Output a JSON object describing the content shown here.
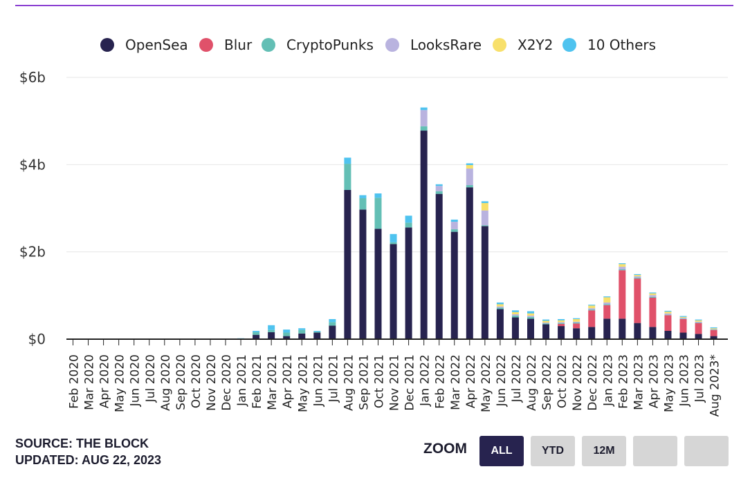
{
  "legend": [
    {
      "label": "OpenSea",
      "color": "#27234f"
    },
    {
      "label": "Blur",
      "color": "#e0516a"
    },
    {
      "label": "CryptoPunks",
      "color": "#63bfb5"
    },
    {
      "label": "LooksRare",
      "color": "#b9b3df"
    },
    {
      "label": "X2Y2",
      "color": "#f8e06b"
    },
    {
      "label": "10 Others",
      "color": "#4fc3ef"
    }
  ],
  "footer": {
    "source": "SOURCE: THE BLOCK",
    "updated": "UPDATED: AUG 22, 2023"
  },
  "zoom": {
    "label": "ZOOM",
    "buttons": [
      "ALL",
      "YTD",
      "12M",
      "",
      ""
    ],
    "active": "ALL"
  },
  "chart_data": {
    "type": "bar",
    "stacked": true,
    "title": "",
    "xlabel": "",
    "ylabel": "",
    "ylim": [
      0,
      6
    ],
    "y_unit": "billion USD",
    "y_ticks": [
      "$0",
      "$2b",
      "$4b",
      "$6b"
    ],
    "y_tick_values": [
      0,
      2,
      4,
      6
    ],
    "legend_position": "top-center",
    "categories": [
      "Feb 2020",
      "Mar 2020",
      "Apr 2020",
      "May 2020",
      "Jun 2020",
      "Jul 2020",
      "Aug 2020",
      "Sep 2020",
      "Oct 2020",
      "Nov 2020",
      "Dec 2020",
      "Jan 2021",
      "Feb 2021",
      "Mar 2021",
      "Apr 2021",
      "May 2021",
      "Jun 2021",
      "Jul 2021",
      "Aug 2021",
      "Sep 2021",
      "Oct 2021",
      "Nov 2021",
      "Dec 2021",
      "Jan 2022",
      "Feb 2022",
      "Mar 2022",
      "Apr 2022",
      "May 2022",
      "Jun 2022",
      "Jul 2022",
      "Aug 2022",
      "Sep 2022",
      "Oct 2022",
      "Nov 2022",
      "Dec 2022",
      "Jan 2023",
      "Feb 2023",
      "Mar 2023",
      "Apr 2023",
      "May 2023",
      "Jun 2023",
      "Jul 2023",
      "Aug 2023*"
    ],
    "series": [
      {
        "name": "OpenSea",
        "color": "#27234f",
        "values": [
          0,
          0,
          0,
          0,
          0,
          0,
          0,
          0,
          0,
          0,
          0,
          0.005,
          0.1,
          0.16,
          0.07,
          0.13,
          0.15,
          0.31,
          3.42,
          2.97,
          2.53,
          2.18,
          2.56,
          4.78,
          3.33,
          2.46,
          3.48,
          2.59,
          0.69,
          0.5,
          0.47,
          0.34,
          0.3,
          0.25,
          0.28,
          0.47,
          0.47,
          0.37,
          0.28,
          0.19,
          0.15,
          0.12,
          0.07
        ]
      },
      {
        "name": "Blur",
        "color": "#e0516a",
        "values": [
          0,
          0,
          0,
          0,
          0,
          0,
          0,
          0,
          0,
          0,
          0,
          0,
          0,
          0,
          0,
          0,
          0,
          0,
          0,
          0,
          0,
          0,
          0,
          0,
          0,
          0,
          0,
          0,
          0,
          0,
          0,
          0,
          0.05,
          0.11,
          0.38,
          0.31,
          1.11,
          1.02,
          0.67,
          0.36,
          0.31,
          0.25,
          0.14
        ]
      },
      {
        "name": "CryptoPunks",
        "color": "#63bfb5",
        "values": [
          0,
          0,
          0,
          0,
          0,
          0,
          0,
          0,
          0,
          0,
          0,
          0.01,
          0.06,
          0.05,
          0.08,
          0.08,
          0.02,
          0.08,
          0.6,
          0.26,
          0.71,
          0.04,
          0.11,
          0.1,
          0.06,
          0.06,
          0.05,
          0.02,
          0.03,
          0.04,
          0.04,
          0.02,
          0.02,
          0.02,
          0.02,
          0.02,
          0.02,
          0.02,
          0.02,
          0.01,
          0.01,
          0.01,
          0.01
        ]
      },
      {
        "name": "LooksRare",
        "color": "#b9b3df",
        "values": [
          0,
          0,
          0,
          0,
          0,
          0,
          0,
          0,
          0,
          0,
          0,
          0,
          0,
          0,
          0,
          0,
          0,
          0,
          0,
          0,
          0,
          0,
          0,
          0.37,
          0.12,
          0.17,
          0.38,
          0.34,
          0.03,
          0.03,
          0.03,
          0.02,
          0.02,
          0.02,
          0.03,
          0.04,
          0.06,
          0.03,
          0.04,
          0.03,
          0.02,
          0.02,
          0.01
        ]
      },
      {
        "name": "X2Y2",
        "color": "#f8e06b",
        "values": [
          0,
          0,
          0,
          0,
          0,
          0,
          0,
          0,
          0,
          0,
          0,
          0,
          0,
          0,
          0,
          0,
          0,
          0,
          0,
          0,
          0,
          0,
          0,
          0,
          0,
          0,
          0.08,
          0.17,
          0.05,
          0.05,
          0.05,
          0.04,
          0.04,
          0.06,
          0.06,
          0.12,
          0.06,
          0.03,
          0.04,
          0.04,
          0.02,
          0.03,
          0.02
        ]
      },
      {
        "name": "10 Others",
        "color": "#4fc3ef",
        "values": [
          0,
          0,
          0,
          0,
          0,
          0,
          0,
          0,
          0,
          0,
          0,
          0.005,
          0.03,
          0.11,
          0.07,
          0.04,
          0.02,
          0.07,
          0.14,
          0.07,
          0.1,
          0.19,
          0.16,
          0.06,
          0.04,
          0.05,
          0.04,
          0.04,
          0.04,
          0.04,
          0.05,
          0.03,
          0.03,
          0.02,
          0.02,
          0.02,
          0.02,
          0.02,
          0.02,
          0.02,
          0.02,
          0.02,
          0.02
        ]
      }
    ]
  }
}
